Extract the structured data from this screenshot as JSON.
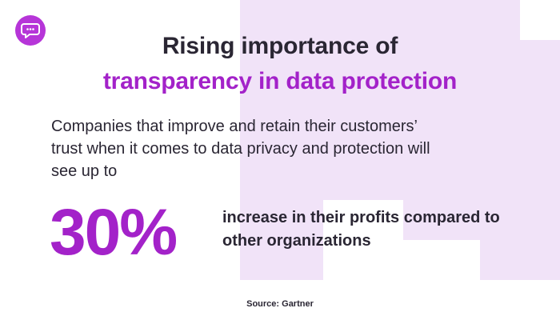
{
  "brand": {
    "accent": "#a322c9",
    "logo_bg": "#b635d8",
    "background_accent": "#f1e3f8",
    "text": "#2a2633"
  },
  "logo": {
    "icon": "chat-bubble-icon"
  },
  "headline": {
    "line1": "Rising importance of",
    "line2": "transparency in data protection"
  },
  "intro": "Companies that improve and retain their customers’ trust when it comes to data privacy and protection will see up to",
  "stat": {
    "value": "30%",
    "description": "increase in their profits compared to other organizations"
  },
  "source": "Source: Gartner"
}
